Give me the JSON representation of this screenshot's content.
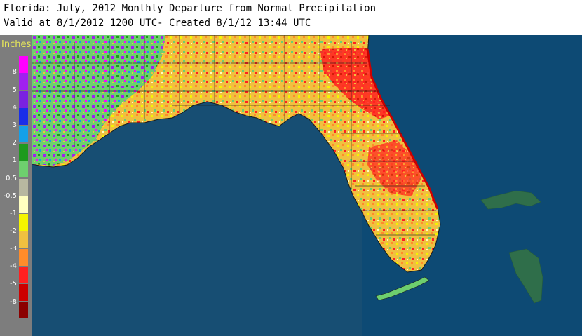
{
  "title": {
    "line1": "Florida: July, 2012 Monthly Departure from Normal Precipitation",
    "line2": "Valid at 8/1/2012 1200 UTC- Created 8/1/12 13:44 UTC"
  },
  "legend": {
    "unit": "Inches",
    "ticks": [
      "8",
      "5",
      "4",
      "3",
      "2",
      "1",
      "0.5",
      "-0.5",
      "-1",
      "-2",
      "-3",
      "-4",
      "-5",
      "-8"
    ],
    "colors": [
      "#ff00ff",
      "#a020f0",
      "#7a22e0",
      "#1a2ee8",
      "#13a0e8",
      "#1e9a1e",
      "#6ecf6e",
      "#b8b8a0",
      "#ffffc0",
      "#f5f500",
      "#f0c040",
      "#ff8c2a",
      "#ff2020",
      "#cc0000",
      "#8b0000"
    ]
  },
  "map": {
    "colors": {
      "ocean": "#0d4a74",
      "gulf": "#174e73",
      "land_dry": "#f0c040",
      "land_wet": "#6ecf6e",
      "bahamas": "#2f6e4a"
    }
  }
}
